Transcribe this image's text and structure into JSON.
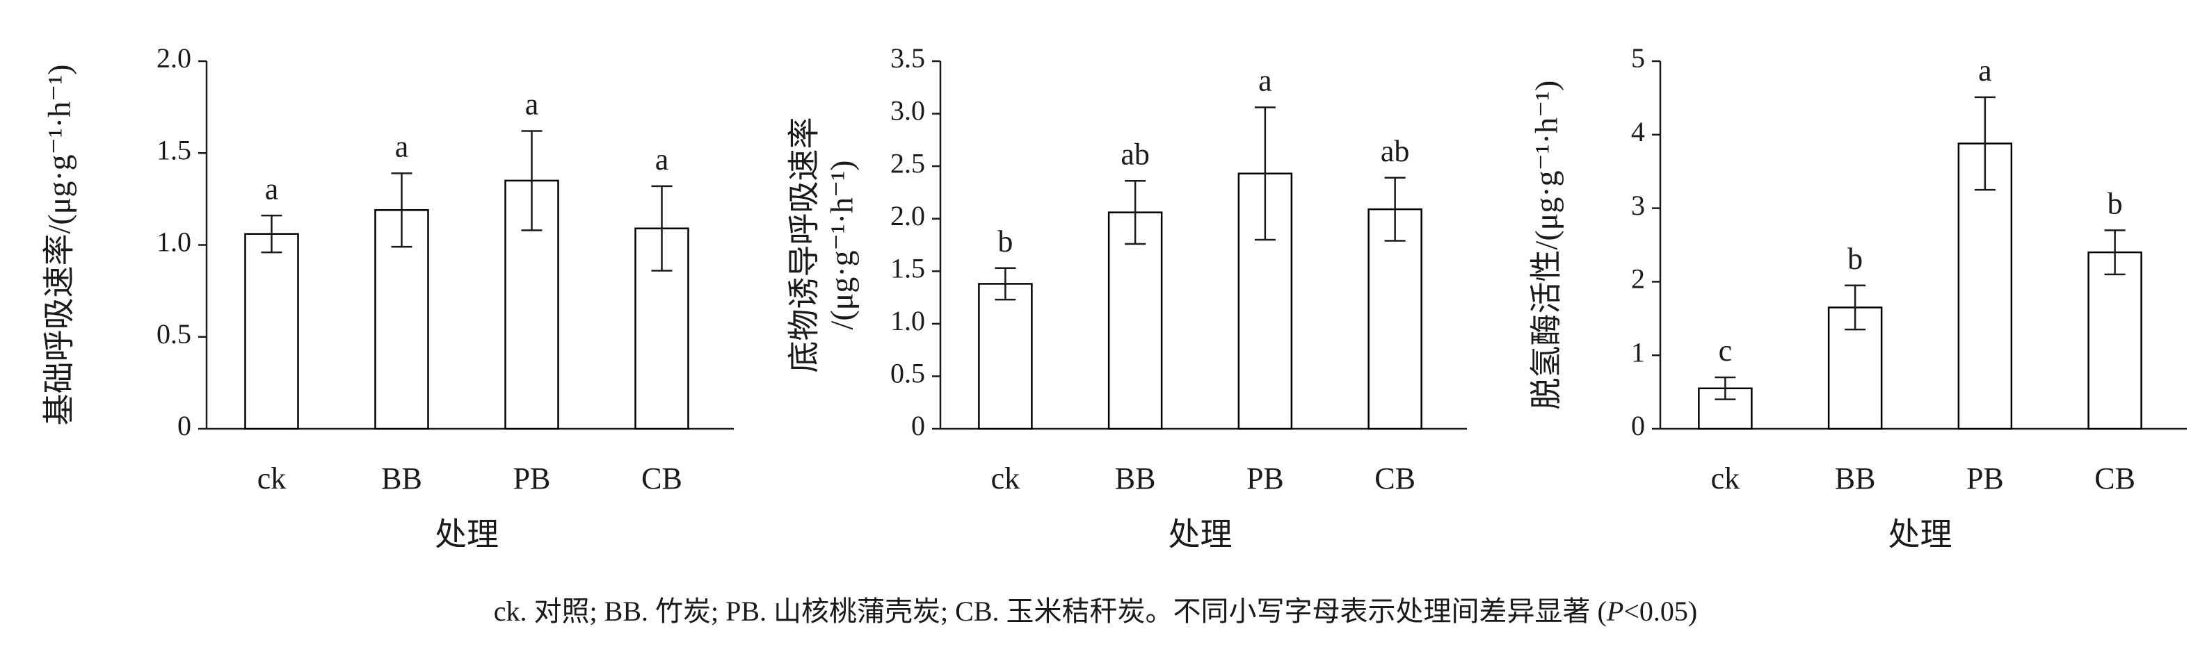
{
  "chart_data": [
    {
      "type": "bar",
      "y_label": [
        "基础呼吸速率/(μg·g⁻¹·h⁻¹)"
      ],
      "x_label": "处理",
      "categories": [
        "ck",
        "BB",
        "PB",
        "CB"
      ],
      "values": [
        1.06,
        1.19,
        1.35,
        1.09
      ],
      "errors": [
        0.1,
        0.2,
        0.27,
        0.23
      ],
      "significance_letters": [
        "a",
        "a",
        "a",
        "a"
      ],
      "color": "#ffffff",
      "edge_color": "#000000",
      "ylim": [
        0,
        2.0
      ],
      "yticks": [
        0,
        0.5,
        {
          "value": 1.0,
          "label": "1.0"
        },
        1.5,
        {
          "value": 2.0,
          "label": "2.0"
        }
      ]
    },
    {
      "type": "bar",
      "y_label": [
        "底物诱导呼吸速率",
        "/(μg·g⁻¹·h⁻¹)"
      ],
      "x_label": "处理",
      "categories": [
        "ck",
        "BB",
        "PB",
        "CB"
      ],
      "values": [
        1.38,
        2.06,
        2.43,
        2.09
      ],
      "errors": [
        0.15,
        0.3,
        0.63,
        0.3
      ],
      "significance_letters": [
        "b",
        "ab",
        "a",
        "ab"
      ],
      "color": "#ffffff",
      "edge_color": "#000000",
      "ylim": [
        0,
        3.5
      ],
      "yticks": [
        0,
        0.5,
        {
          "value": 1.0,
          "label": "1.0"
        },
        1.5,
        {
          "value": 2.0,
          "label": "2.0"
        },
        2.5,
        {
          "value": 3.0,
          "label": "3.0"
        },
        3.5
      ]
    },
    {
      "type": "bar",
      "y_label": [
        "脱氢酶活性/(μg·g⁻¹·h⁻¹)"
      ],
      "x_label": "处理",
      "categories": [
        "ck",
        "BB",
        "PB",
        "CB"
      ],
      "values": [
        0.55,
        1.65,
        3.88,
        2.4
      ],
      "errors": [
        0.15,
        0.3,
        0.63,
        0.3
      ],
      "significance_letters": [
        "c",
        "b",
        "a",
        "b"
      ],
      "color": "#ffffff",
      "edge_color": "#000000",
      "ylim": [
        0,
        5
      ],
      "yticks": [
        0,
        1,
        2,
        3,
        4,
        5
      ]
    }
  ],
  "caption": [
    "ck. 对照; BB. 竹炭; PB. 山核桃蒲壳炭; CB. 玉米秸秆炭。不同小写字母表示处理间差异显著 (",
    "P",
    "<0.05)"
  ]
}
